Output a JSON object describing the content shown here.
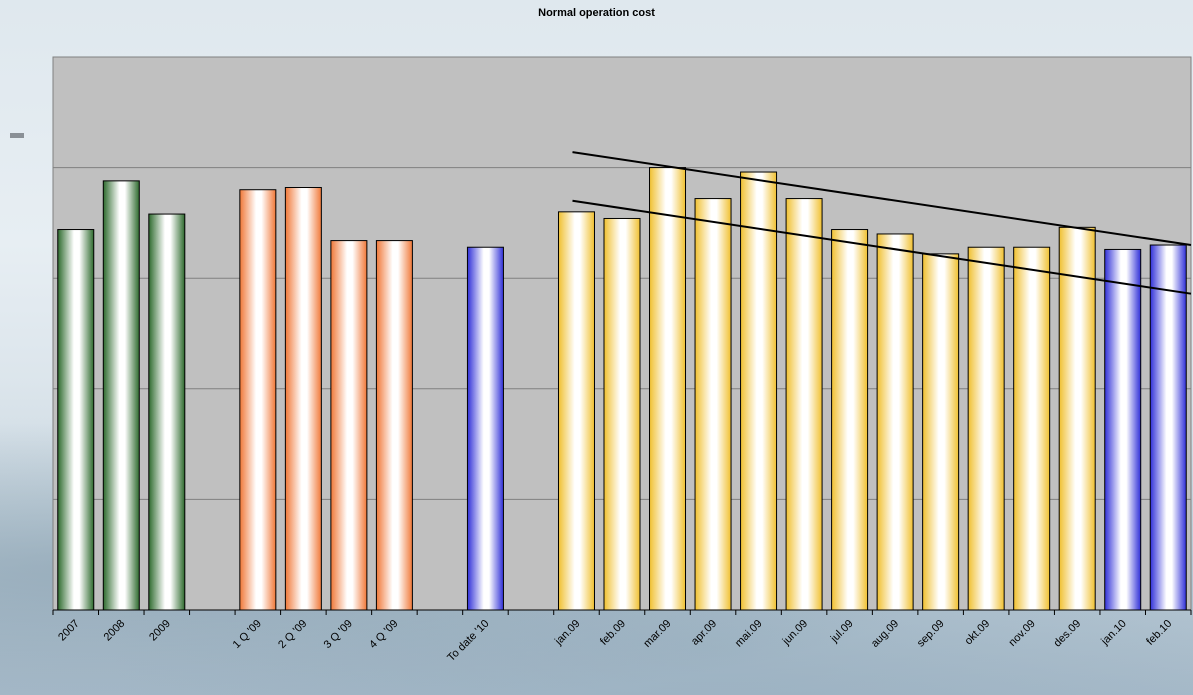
{
  "chart_data": {
    "type": "bar",
    "title": "Normal operation cost",
    "xlabel": "",
    "ylabel": "",
    "ylim": [
      0,
      250
    ],
    "grid": true,
    "legend": "none",
    "categories": [
      "2007",
      "2008",
      "2009",
      "",
      "1 Q '09",
      "2 Q '09",
      "3 Q '09",
      "4 Q '09",
      "",
      "To date '10",
      "",
      "jan.09",
      "feb.09",
      "mar.09",
      "apr.09",
      "mai.09",
      "jun.09",
      "jul.09",
      "aug.09",
      "sep.09",
      "okt.09",
      "nov.09",
      "des.09",
      "jan.10",
      "feb.10"
    ],
    "values": [
      172,
      194,
      179,
      null,
      190,
      191,
      167,
      167,
      null,
      164,
      null,
      180,
      177,
      200,
      186,
      198,
      186,
      172,
      170,
      161,
      164,
      164,
      173,
      163,
      165
    ],
    "bar_colors": [
      "#2e6b2e",
      "#2e6b2e",
      "#2e6b2e",
      null,
      "#f07838",
      "#f07838",
      "#f07838",
      "#f07838",
      null,
      "#3030d8",
      null,
      "#f0c030",
      "#f0c030",
      "#f0c030",
      "#f0c030",
      "#f0c030",
      "#f0c030",
      "#f0c030",
      "#f0c030",
      "#f0c030",
      "#f0c030",
      "#f0c030",
      "#f0c030",
      "#3030d8",
      "#3030d8"
    ],
    "trend_lines": [
      {
        "from": {
          "x": "jan.09",
          "y": 207
        },
        "to": {
          "x": "feb.10",
          "y": 165
        }
      },
      {
        "from": {
          "x": "jan.09",
          "y": 185
        },
        "to": {
          "x": "feb.10",
          "y": 143
        }
      }
    ],
    "plot_background": "#c0c0c0",
    "gridline_color": "#808080"
  }
}
